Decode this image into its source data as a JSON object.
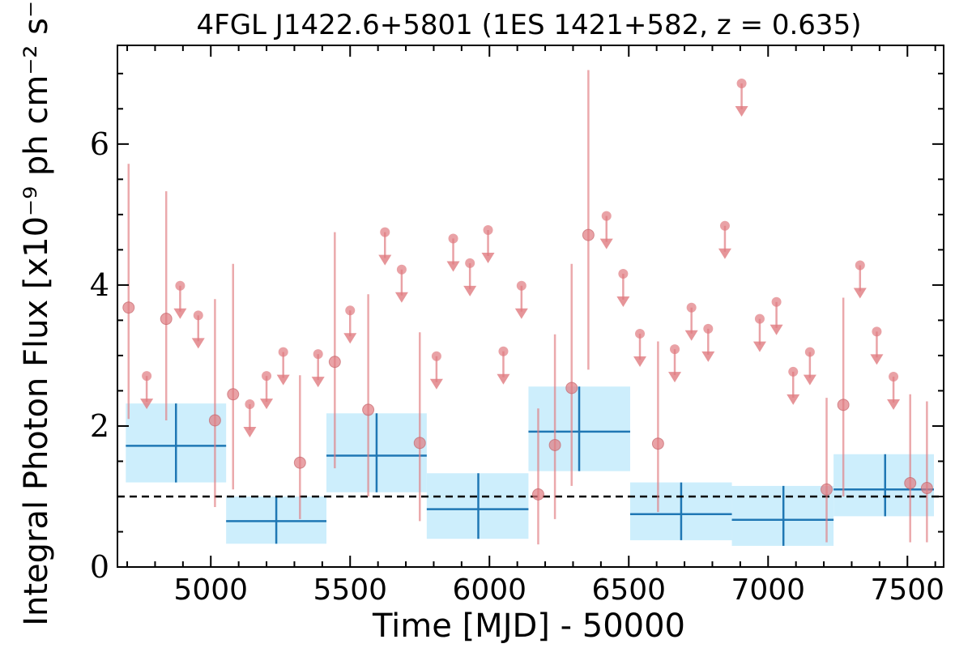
{
  "chart_data": {
    "type": "scatter",
    "title": "4FGL J1422.6+5801 (1ES 1421+582, z = 0.635)",
    "xlabel": "Time [MJD] - 50000",
    "ylabel": "Integral Photon Flux [x10⁻⁹ ph cm⁻² s⁻¹]",
    "xlim": [
      4665,
      7630
    ],
    "ylim": [
      0,
      7.4
    ],
    "xticks": [
      5000,
      5500,
      6000,
      6500,
      7000,
      7500
    ],
    "yticks": [
      0,
      2,
      4,
      6
    ],
    "reference_line": 1.0,
    "colors": {
      "points": "#e07b80",
      "bins": "#1f77b4",
      "bin_band": "#cdeefc",
      "reference": "#000000"
    },
    "detections": [
      {
        "x": 4705,
        "y": 3.68,
        "ylo": 2.1,
        "yhi": 5.72
      },
      {
        "x": 4840,
        "y": 3.52,
        "ylo": 2.08,
        "yhi": 5.33
      },
      {
        "x": 5015,
        "y": 2.08,
        "ylo": 0.85,
        "yhi": 3.8
      },
      {
        "x": 5080,
        "y": 2.45,
        "ylo": 1.1,
        "yhi": 4.3
      },
      {
        "x": 5320,
        "y": 1.48,
        "ylo": 0.68,
        "yhi": 2.72
      },
      {
        "x": 5445,
        "y": 2.91,
        "ylo": 1.4,
        "yhi": 4.75
      },
      {
        "x": 5565,
        "y": 2.23,
        "ylo": 1.0,
        "yhi": 3.87
      },
      {
        "x": 5750,
        "y": 1.76,
        "ylo": 0.65,
        "yhi": 3.33
      },
      {
        "x": 6175,
        "y": 1.03,
        "ylo": 0.32,
        "yhi": 2.25
      },
      {
        "x": 6235,
        "y": 1.73,
        "ylo": 0.68,
        "yhi": 3.3
      },
      {
        "x": 6295,
        "y": 2.54,
        "ylo": 1.15,
        "yhi": 4.3
      },
      {
        "x": 6355,
        "y": 4.71,
        "ylo": 2.8,
        "yhi": 7.05
      },
      {
        "x": 6605,
        "y": 1.75,
        "ylo": 0.78,
        "yhi": 3.2
      },
      {
        "x": 7210,
        "y": 1.1,
        "ylo": 0.35,
        "yhi": 2.4
      },
      {
        "x": 7270,
        "y": 2.3,
        "ylo": 1.0,
        "yhi": 3.82
      },
      {
        "x": 7510,
        "y": 1.19,
        "ylo": 0.35,
        "yhi": 2.45
      },
      {
        "x": 7570,
        "y": 1.12,
        "ylo": 0.35,
        "yhi": 2.35
      }
    ],
    "upper_limits": [
      {
        "x": 4770,
        "y": 2.71
      },
      {
        "x": 4890,
        "y": 3.99
      },
      {
        "x": 4955,
        "y": 3.57
      },
      {
        "x": 5140,
        "y": 2.31
      },
      {
        "x": 5200,
        "y": 2.71
      },
      {
        "x": 5260,
        "y": 3.05
      },
      {
        "x": 5385,
        "y": 3.02
      },
      {
        "x": 5500,
        "y": 3.64
      },
      {
        "x": 5625,
        "y": 4.75
      },
      {
        "x": 5685,
        "y": 4.22
      },
      {
        "x": 5810,
        "y": 2.99
      },
      {
        "x": 5870,
        "y": 4.66
      },
      {
        "x": 5930,
        "y": 4.31
      },
      {
        "x": 5995,
        "y": 4.78
      },
      {
        "x": 6050,
        "y": 3.06
      },
      {
        "x": 6115,
        "y": 3.99
      },
      {
        "x": 6420,
        "y": 4.98
      },
      {
        "x": 6480,
        "y": 4.16
      },
      {
        "x": 6540,
        "y": 3.31
      },
      {
        "x": 6665,
        "y": 3.09
      },
      {
        "x": 6725,
        "y": 3.68
      },
      {
        "x": 6785,
        "y": 3.38
      },
      {
        "x": 6845,
        "y": 4.84
      },
      {
        "x": 6905,
        "y": 6.86
      },
      {
        "x": 6970,
        "y": 3.52
      },
      {
        "x": 7030,
        "y": 3.76
      },
      {
        "x": 7090,
        "y": 2.77
      },
      {
        "x": 7150,
        "y": 3.05
      },
      {
        "x": 7390,
        "y": 3.34
      },
      {
        "x": 7450,
        "y": 2.7
      },
      {
        "x": 7330,
        "y": 4.28
      }
    ],
    "bins": [
      {
        "x0": 4695,
        "x1": 5055,
        "xc": 4875,
        "y": 1.72,
        "ylo": 1.2,
        "yhi": 2.32
      },
      {
        "x0": 5055,
        "x1": 5415,
        "xc": 5235,
        "y": 0.65,
        "ylo": 0.33,
        "yhi": 1.0
      },
      {
        "x0": 5415,
        "x1": 5775,
        "xc": 5595,
        "y": 1.58,
        "ylo": 1.06,
        "yhi": 2.18
      },
      {
        "x0": 5775,
        "x1": 6140,
        "xc": 5960,
        "y": 0.82,
        "ylo": 0.4,
        "yhi": 1.33
      },
      {
        "x0": 6140,
        "x1": 6505,
        "xc": 6322,
        "y": 1.92,
        "ylo": 1.36,
        "yhi": 2.56
      },
      {
        "x0": 6505,
        "x1": 6870,
        "xc": 6688,
        "y": 0.75,
        "ylo": 0.38,
        "yhi": 1.2
      },
      {
        "x0": 6870,
        "x1": 7235,
        "xc": 7055,
        "y": 0.67,
        "ylo": 0.3,
        "yhi": 1.15
      },
      {
        "x0": 7235,
        "x1": 7595,
        "xc": 7420,
        "y": 1.1,
        "ylo": 0.72,
        "yhi": 1.6
      }
    ]
  }
}
